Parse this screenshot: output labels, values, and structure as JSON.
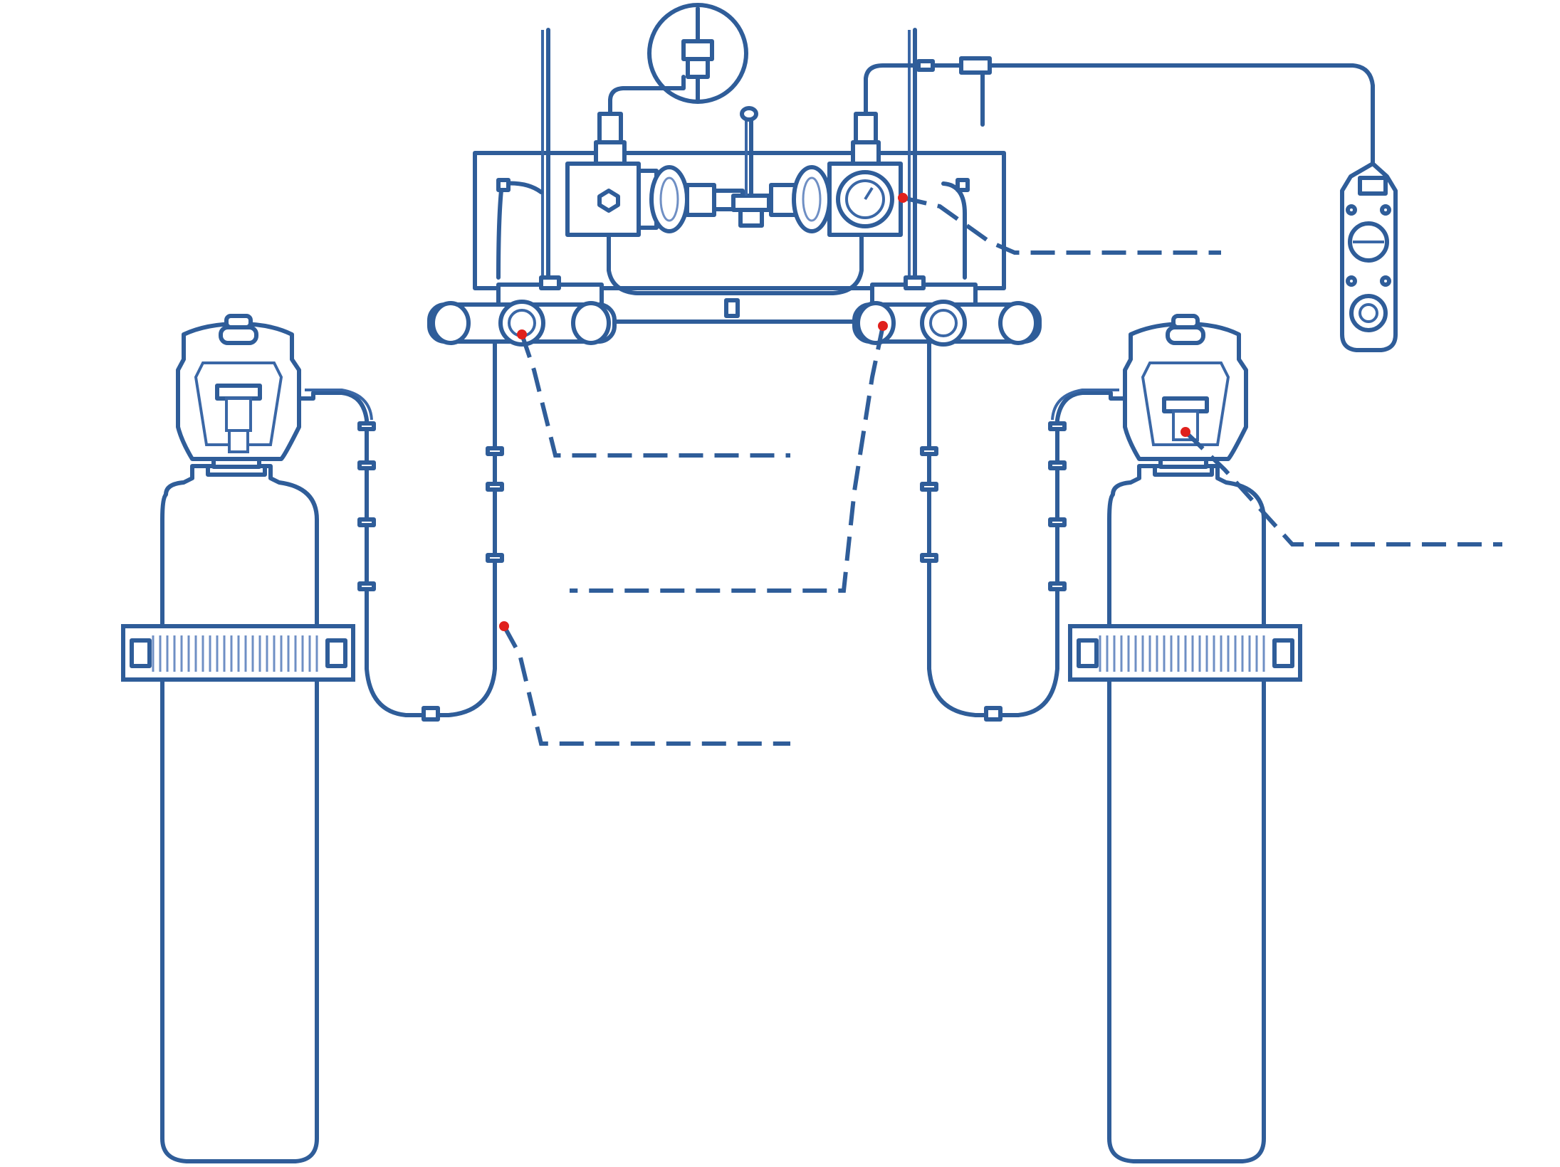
{
  "diagram": {
    "colors": {
      "line": "#2f5d99",
      "line_light": "#6f8fc4",
      "callout_marker": "#e0201c",
      "background": "#ffffff"
    },
    "components": [
      "gas-cylinder-left",
      "gas-cylinder-right",
      "cylinder-valve-left",
      "cylinder-valve-right",
      "high-pressure-hose-left",
      "high-pressure-hose-right",
      "inlet-block-left",
      "inlet-block-right",
      "changeover-panel",
      "regulator-left",
      "regulator-right",
      "pressure-gauge",
      "remote-alarm-unit"
    ],
    "callouts": [
      {
        "id": "callout-regulator-right",
        "label": ""
      },
      {
        "id": "callout-inlet-gauge-left",
        "label": ""
      },
      {
        "id": "callout-inlet-block-right",
        "label": ""
      },
      {
        "id": "callout-cylinder-valve-right",
        "label": ""
      },
      {
        "id": "callout-hose-left",
        "label": ""
      }
    ]
  }
}
